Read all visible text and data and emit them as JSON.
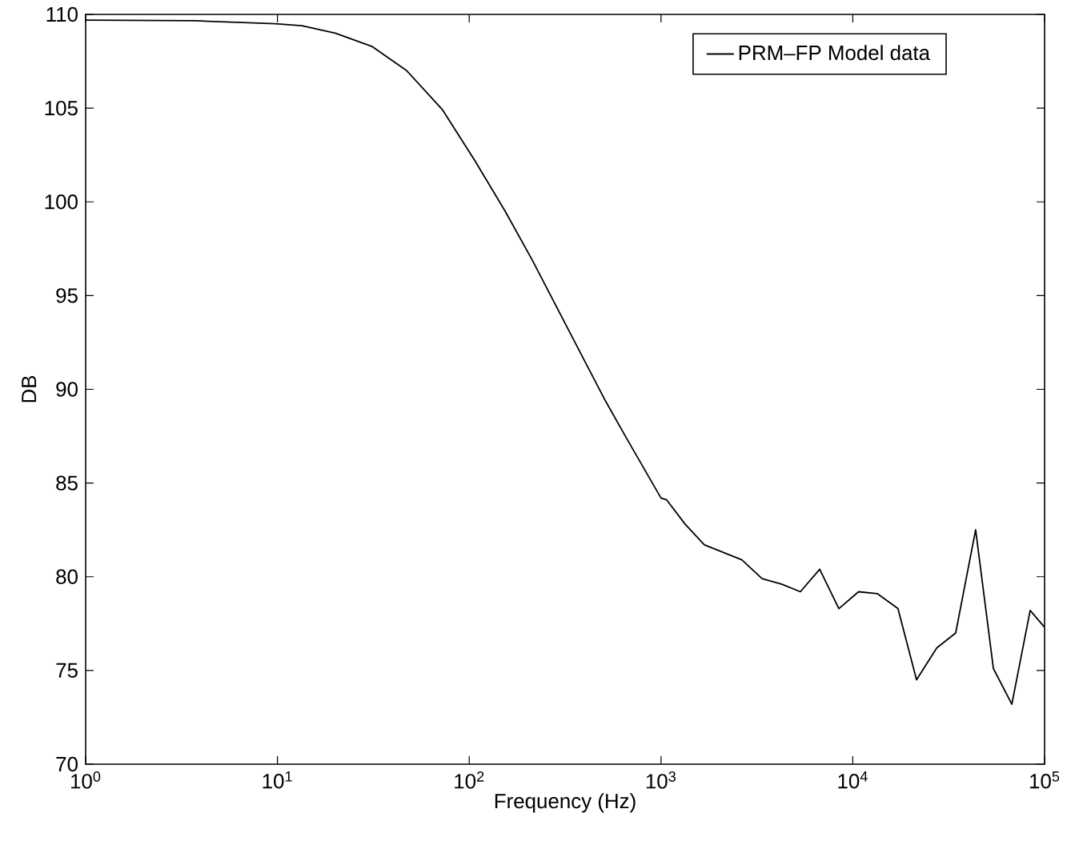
{
  "chart_data": {
    "type": "line",
    "xlabel": "Frequency (Hz)",
    "ylabel": "DB",
    "log": "x",
    "x": [
      1,
      3.7,
      9.7,
      13.4,
      20,
      31,
      47.2,
      72.7,
      107,
      154,
      213,
      299,
      512,
      660,
      1000,
      1070,
      1337,
      1683,
      2640,
      3365,
      4270,
      5330,
      6720,
      8460,
      10720,
      13400,
      17200,
      21500,
      27400,
      34400,
      43700,
      54100,
      67500,
      84100,
      100000
    ],
    "series": [
      {
        "name": "PRM–FP Model data",
        "color": "#000000",
        "values": [
          109.7,
          109.66,
          109.5,
          109.4,
          109.0,
          108.3,
          107.0,
          104.9,
          102.2,
          99.5,
          96.9,
          94.0,
          89.4,
          87.4,
          84.2,
          84.1,
          82.8,
          81.7,
          80.9,
          79.9,
          79.6,
          79.2,
          80.4,
          78.3,
          79.2,
          79.1,
          78.3,
          74.5,
          76.2,
          77.0,
          82.5,
          75.1,
          73.2,
          78.2,
          77.3
        ]
      }
    ],
    "xlim": [
      1,
      100000
    ],
    "ylim": [
      70,
      110
    ],
    "xticks": [
      {
        "value": 1,
        "label": "10$^{0}$"
      },
      {
        "value": 10,
        "label": "10$^{1}$"
      },
      {
        "value": 100,
        "label": "10$^{2}$"
      },
      {
        "value": 1000,
        "label": "10$^{3}$"
      },
      {
        "value": 10000,
        "label": "10$^{4}$"
      },
      {
        "value": 100000,
        "label": "10$^{5}$"
      }
    ],
    "yticks": [
      70,
      75,
      80,
      85,
      90,
      95,
      100,
      105,
      110
    ],
    "legend": "top right",
    "grid": false,
    "marker": "none",
    "line_style": "solid"
  }
}
